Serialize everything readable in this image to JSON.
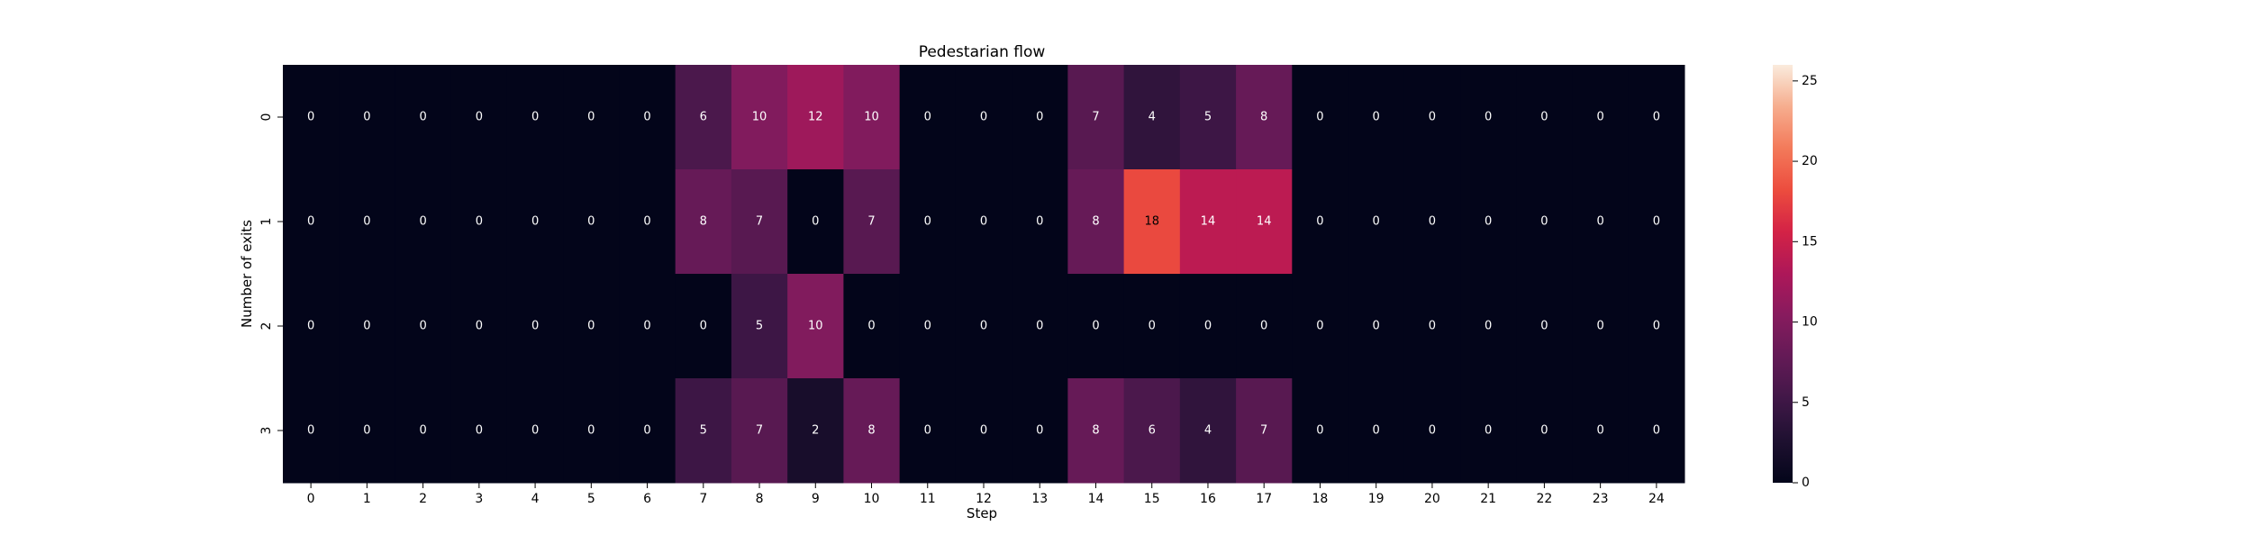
{
  "chart_data": {
    "type": "heatmap",
    "title": "Pedestarian flow",
    "xlabel": "Step",
    "ylabel": "Number of exits",
    "x": [
      0,
      1,
      2,
      3,
      4,
      5,
      6,
      7,
      8,
      9,
      10,
      11,
      12,
      13,
      14,
      15,
      16,
      17,
      18,
      19,
      20,
      21,
      22,
      23,
      24
    ],
    "y": [
      0,
      1,
      2,
      3
    ],
    "values": [
      [
        0,
        0,
        0,
        0,
        0,
        0,
        0,
        6,
        10,
        12,
        10,
        0,
        0,
        0,
        7,
        4,
        5,
        8,
        0,
        0,
        0,
        0,
        0,
        0,
        0
      ],
      [
        0,
        0,
        0,
        0,
        0,
        0,
        0,
        8,
        7,
        0,
        7,
        0,
        0,
        0,
        8,
        18,
        14,
        14,
        0,
        0,
        0,
        0,
        0,
        0,
        0
      ],
      [
        0,
        0,
        0,
        0,
        0,
        0,
        0,
        0,
        5,
        10,
        0,
        0,
        0,
        0,
        0,
        0,
        0,
        0,
        0,
        0,
        0,
        0,
        0,
        0,
        0
      ],
      [
        0,
        0,
        0,
        0,
        0,
        0,
        0,
        5,
        7,
        2,
        8,
        0,
        0,
        0,
        8,
        6,
        4,
        7,
        0,
        0,
        0,
        0,
        0,
        0,
        0
      ]
    ],
    "colorbar": {
      "min": 0,
      "max": 26,
      "ticks": [
        0,
        5,
        10,
        15,
        20,
        25
      ],
      "colormap": "rocket"
    },
    "annotations": true
  }
}
